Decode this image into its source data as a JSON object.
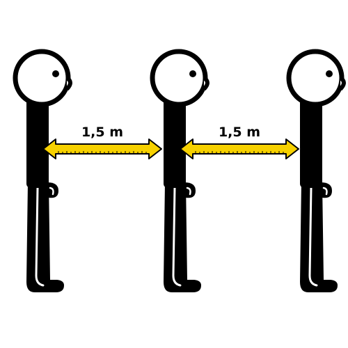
{
  "figure": {
    "people_count": 3,
    "line_color": "#000000",
    "skin_color": "#ffffff",
    "arrow_color": "#f7d100",
    "arrow_outline": "#000000"
  },
  "distances": [
    {
      "label": "1,5 m"
    },
    {
      "label": "1,5 m"
    }
  ]
}
